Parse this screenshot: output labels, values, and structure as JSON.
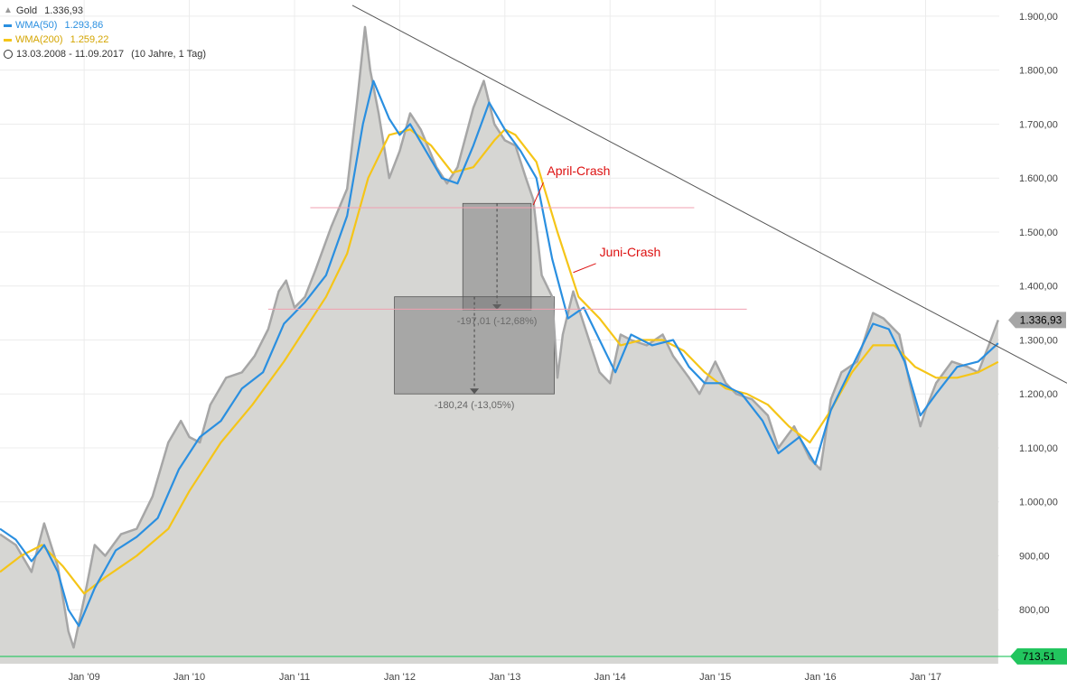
{
  "colors": {
    "price_line": "#a6a6a6",
    "price_area": "#d6d6d3",
    "wma50": "#2a8fe0",
    "wma200": "#f5c518",
    "trendline": "#555555",
    "support_line": "#f0a0b0",
    "baseline": "#22c55e",
    "crash_label": "#dd1111"
  },
  "legend": {
    "items": [
      {
        "icon": "area-chart-icon",
        "name": "Gold",
        "value": "1.336,93"
      },
      {
        "icon": "line-icon",
        "name": "WMA(50)",
        "value": "1.293,86"
      },
      {
        "icon": "line-icon",
        "name": "WMA(200)",
        "value": "1.259,22"
      }
    ],
    "range": "13.03.2008 - 11.09.2017",
    "range_note": "(10 Jahre, 1 Tag)"
  },
  "chart_data": {
    "type": "area",
    "x_tick_labels": [
      "Jan '09",
      "Jan '10",
      "Jan '11",
      "Jan '12",
      "Jan '13",
      "Jan '14",
      "Jan '15",
      "Jan '16",
      "Jan '17"
    ],
    "y_tick_labels": [
      "800,00",
      "900,00",
      "1.000,00",
      "1.100,00",
      "1.200,00",
      "1.300,00",
      "1.400,00",
      "1.500,00",
      "1.600,00",
      "1.700,00",
      "1.800,00",
      "1.900,00"
    ],
    "y_ticks": [
      800,
      900,
      1000,
      1100,
      1200,
      1300,
      1400,
      1500,
      1600,
      1700,
      1800,
      1900
    ],
    "x_ticks": [
      2009,
      2010,
      2011,
      2012,
      2013,
      2014,
      2015,
      2016,
      2017
    ],
    "xlim": [
      2008.2,
      2017.7
    ],
    "ylim": [
      700,
      1930
    ],
    "grid": true,
    "series": [
      {
        "name": "Gold",
        "x": [
          2008.2,
          2008.35,
          2008.5,
          2008.62,
          2008.75,
          2008.85,
          2008.9,
          2009.0,
          2009.1,
          2009.2,
          2009.35,
          2009.5,
          2009.65,
          2009.8,
          2009.92,
          2010.0,
          2010.1,
          2010.2,
          2010.35,
          2010.5,
          2010.62,
          2010.75,
          2010.85,
          2010.92,
          2011.0,
          2011.1,
          2011.2,
          2011.35,
          2011.5,
          2011.6,
          2011.67,
          2011.72,
          2011.8,
          2011.9,
          2012.0,
          2012.1,
          2012.2,
          2012.35,
          2012.45,
          2012.55,
          2012.7,
          2012.8,
          2012.9,
          2013.0,
          2013.1,
          2013.2,
          2013.27,
          2013.35,
          2013.45,
          2013.5,
          2013.55,
          2013.65,
          2013.75,
          2013.9,
          2014.0,
          2014.1,
          2014.2,
          2014.35,
          2014.5,
          2014.6,
          2014.75,
          2014.85,
          2015.0,
          2015.1,
          2015.2,
          2015.35,
          2015.5,
          2015.6,
          2015.75,
          2015.9,
          2016.0,
          2016.1,
          2016.2,
          2016.35,
          2016.5,
          2016.6,
          2016.75,
          2016.85,
          2016.95,
          2017.0,
          2017.1,
          2017.25,
          2017.4,
          2017.5,
          2017.6,
          2017.69
        ],
        "values": [
          940,
          920,
          870,
          960,
          880,
          760,
          730,
          820,
          920,
          900,
          940,
          950,
          1010,
          1110,
          1150,
          1120,
          1110,
          1180,
          1230,
          1240,
          1270,
          1320,
          1390,
          1410,
          1360,
          1380,
          1430,
          1510,
          1580,
          1750,
          1880,
          1800,
          1720,
          1600,
          1650,
          1720,
          1690,
          1620,
          1590,
          1620,
          1730,
          1780,
          1700,
          1670,
          1660,
          1600,
          1560,
          1420,
          1380,
          1230,
          1310,
          1390,
          1330,
          1240,
          1220,
          1310,
          1300,
          1290,
          1310,
          1270,
          1230,
          1200,
          1260,
          1220,
          1200,
          1190,
          1160,
          1100,
          1140,
          1080,
          1060,
          1190,
          1240,
          1260,
          1350,
          1340,
          1310,
          1220,
          1140,
          1170,
          1220,
          1260,
          1250,
          1240,
          1290,
          1336.93
        ]
      },
      {
        "name": "WMA(50)",
        "x": [
          2008.2,
          2008.35,
          2008.5,
          2008.62,
          2008.75,
          2008.85,
          2008.95,
          2009.1,
          2009.3,
          2009.5,
          2009.7,
          2009.9,
          2010.1,
          2010.3,
          2010.5,
          2010.7,
          2010.9,
          2011.1,
          2011.3,
          2011.5,
          2011.65,
          2011.75,
          2011.9,
          2012.0,
          2012.1,
          2012.25,
          2012.4,
          2012.55,
          2012.7,
          2012.85,
          2013.0,
          2013.15,
          2013.3,
          2013.45,
          2013.6,
          2013.75,
          2013.9,
          2014.05,
          2014.2,
          2014.4,
          2014.6,
          2014.75,
          2014.9,
          2015.05,
          2015.25,
          2015.45,
          2015.6,
          2015.8,
          2015.95,
          2016.1,
          2016.3,
          2016.5,
          2016.65,
          2016.8,
          2016.95,
          2017.1,
          2017.3,
          2017.5,
          2017.69
        ],
        "values": [
          950,
          930,
          890,
          920,
          870,
          800,
          770,
          840,
          910,
          935,
          970,
          1060,
          1120,
          1150,
          1210,
          1240,
          1330,
          1370,
          1420,
          1530,
          1700,
          1780,
          1710,
          1680,
          1700,
          1650,
          1600,
          1590,
          1660,
          1740,
          1690,
          1650,
          1600,
          1450,
          1340,
          1360,
          1300,
          1240,
          1310,
          1290,
          1300,
          1250,
          1220,
          1220,
          1200,
          1150,
          1090,
          1120,
          1070,
          1170,
          1250,
          1330,
          1320,
          1260,
          1160,
          1200,
          1250,
          1260,
          1293.86
        ]
      },
      {
        "name": "WMA(200)",
        "x": [
          2008.2,
          2008.4,
          2008.6,
          2008.8,
          2009.0,
          2009.2,
          2009.5,
          2009.8,
          2010.0,
          2010.3,
          2010.6,
          2010.9,
          2011.1,
          2011.3,
          2011.5,
          2011.7,
          2011.9,
          2012.1,
          2012.3,
          2012.5,
          2012.7,
          2012.9,
          2013.0,
          2013.1,
          2013.3,
          2013.5,
          2013.7,
          2013.9,
          2014.1,
          2014.3,
          2014.5,
          2014.7,
          2014.9,
          2015.1,
          2015.3,
          2015.5,
          2015.7,
          2015.9,
          2016.1,
          2016.3,
          2016.5,
          2016.7,
          2016.9,
          2017.1,
          2017.3,
          2017.5,
          2017.69
        ],
        "values": [
          870,
          900,
          920,
          880,
          830,
          860,
          900,
          950,
          1020,
          1110,
          1180,
          1260,
          1320,
          1380,
          1460,
          1600,
          1680,
          1690,
          1660,
          1610,
          1620,
          1670,
          1690,
          1680,
          1630,
          1500,
          1380,
          1340,
          1290,
          1300,
          1300,
          1280,
          1240,
          1210,
          1200,
          1180,
          1140,
          1110,
          1170,
          1240,
          1290,
          1290,
          1250,
          1230,
          1230,
          1240,
          1259.22
        ]
      }
    ],
    "annotations": {
      "trendline": {
        "from": [
          2011.55,
          1920
        ],
        "to": [
          2017.7,
          1220
        ]
      },
      "support_lines": [
        {
          "y": 1545,
          "from": 2011.15,
          "to": 2014.8
        },
        {
          "y": 1357,
          "from": 2010.75,
          "to": 2015.3
        }
      ],
      "april_box": {
        "x0": 2012.6,
        "x1": 2013.25,
        "y_top": 1553,
        "y_bottom": 1356,
        "label": "-197,01 (-12,68%)"
      },
      "june_box": {
        "x0": 2011.95,
        "x1": 2013.47,
        "y_top": 1380,
        "y_bottom": 1200,
        "label": "-180,24 (-13,05%)"
      },
      "crash_labels": [
        {
          "text": "April-Crash",
          "x": 2013.4,
          "y": 1605,
          "pointer_to": [
            2013.27,
            1550
          ]
        },
        {
          "text": "Juni-Crash",
          "x": 2013.9,
          "y": 1455,
          "pointer_to": [
            2013.65,
            1425
          ]
        }
      ],
      "last_price_tag": "1.336,93",
      "baseline": {
        "y": 713.51,
        "label": "713,51"
      }
    }
  }
}
